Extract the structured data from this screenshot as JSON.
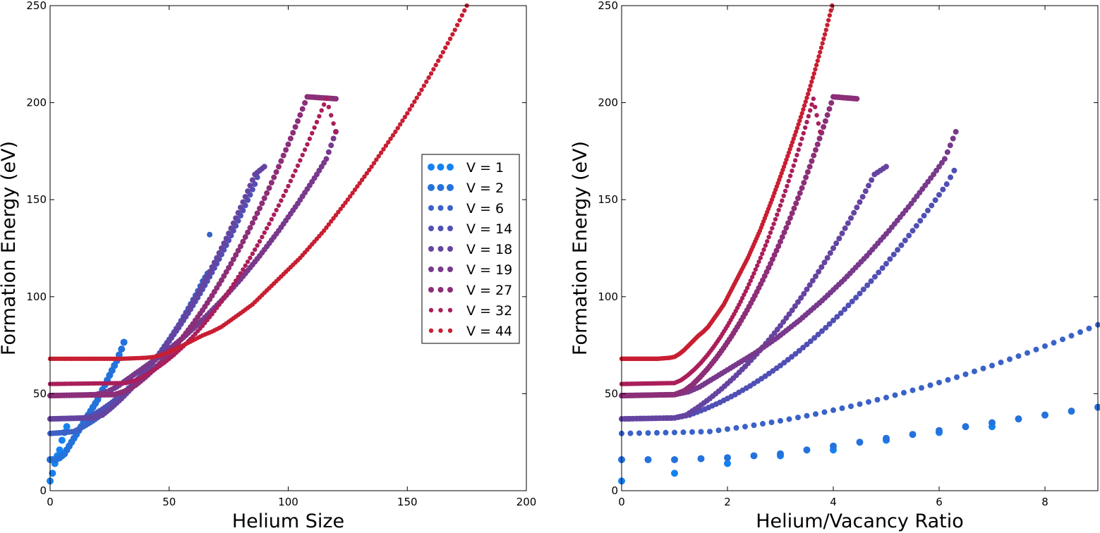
{
  "figure": {
    "panels": [
      {
        "xlabel": "Helium Size",
        "ylabel": "Formation Energy (eV)"
      },
      {
        "xlabel": "Helium/Vacancy Ratio",
        "ylabel": "Formation Energy (eV)"
      }
    ]
  },
  "chart_data": [
    {
      "type": "scatter",
      "xlabel": "Helium Size",
      "ylabel": "Formation Energy (eV)",
      "xlim": [
        0,
        200
      ],
      "ylim": [
        0,
        250
      ],
      "xticks": [
        "0",
        "50",
        "100",
        "150",
        "200"
      ],
      "yticks": [
        "0",
        "50",
        "100",
        "150",
        "200",
        "250"
      ],
      "grid": false,
      "legend": "center-right",
      "x_variable": "helium_size",
      "series": [
        {
          "name": "V = 1",
          "color": "#1482f0",
          "marker_size": "large",
          "points": [
            [
              0,
              5
            ],
            [
              1,
              9
            ],
            [
              2,
              14
            ],
            [
              3,
              18
            ],
            [
              4,
              21
            ],
            [
              5,
              26
            ],
            [
              6,
              30
            ],
            [
              7,
              33
            ]
          ]
        },
        {
          "name": "V = 2",
          "color": "#2472dc",
          "marker_size": "large",
          "points": [
            [
              0,
              16
            ],
            [
              1,
              16
            ],
            [
              2,
              16
            ],
            [
              3,
              16.5
            ],
            [
              4,
              17
            ],
            [
              5,
              18
            ],
            [
              6,
              19
            ],
            [
              7,
              21
            ],
            [
              8,
              23
            ],
            [
              9,
              25
            ],
            [
              10,
              27
            ],
            [
              11,
              29
            ],
            [
              12,
              31
            ],
            [
              13,
              33
            ],
            [
              14,
              35
            ],
            [
              15,
              37
            ],
            [
              16,
              39
            ],
            [
              17,
              41
            ],
            [
              18,
              43
            ],
            [
              19,
              45
            ],
            [
              20,
              47
            ],
            [
              21,
              49.5
            ],
            [
              22,
              52
            ],
            [
              23,
              54.5
            ],
            [
              24,
              57
            ],
            [
              25,
              59.5
            ],
            [
              26,
              62
            ],
            [
              27,
              64.5
            ],
            [
              28,
              67
            ],
            [
              29,
              70
            ],
            [
              30,
              73
            ],
            [
              31,
              76.5
            ]
          ]
        },
        {
          "name": "V = 6",
          "color": "#3a62c8",
          "marker_size": "medium",
          "points": [
            [
              0,
              29.5
            ],
            [
              6,
              30
            ],
            [
              10,
              30.5
            ],
            [
              14,
              33
            ],
            [
              18,
              36
            ],
            [
              22,
              39.5
            ],
            [
              26,
              43.5
            ],
            [
              30,
              48
            ],
            [
              34,
              53
            ],
            [
              38,
              58.5
            ],
            [
              42,
              64.5
            ],
            [
              46,
              71
            ],
            [
              50,
              78
            ],
            [
              54,
              85.5
            ],
            [
              58,
              94
            ],
            [
              62,
              103
            ],
            [
              64,
              108
            ],
            [
              66,
              112
            ],
            [
              67,
              132
            ]
          ]
        },
        {
          "name": "V = 14",
          "color": "#504fb4",
          "marker_size": "medium",
          "points": [
            [
              0,
              37
            ],
            [
              14,
              37.5
            ],
            [
              18,
              39
            ],
            [
              22,
              42
            ],
            [
              26,
              45.5
            ],
            [
              30,
              49.5
            ],
            [
              34,
              54
            ],
            [
              38,
              59
            ],
            [
              42,
              64.5
            ],
            [
              46,
              70.5
            ],
            [
              50,
              77
            ],
            [
              54,
              84
            ],
            [
              58,
              91.5
            ],
            [
              62,
              99.5
            ],
            [
              66,
              108
            ],
            [
              70,
              117
            ],
            [
              74,
              126.5
            ],
            [
              78,
              136.5
            ],
            [
              82,
              147
            ],
            [
              86,
              158
            ],
            [
              88,
              165
            ]
          ]
        },
        {
          "name": "V = 18",
          "color": "#6444a0",
          "marker_size": "medium",
          "points": [
            [
              0,
              37
            ],
            [
              18,
              37.5
            ],
            [
              22,
              39
            ],
            [
              26,
              43
            ],
            [
              30,
              47.5
            ],
            [
              34,
              52.5
            ],
            [
              38,
              58
            ],
            [
              42,
              64
            ],
            [
              46,
              70.5
            ],
            [
              50,
              77.5
            ],
            [
              54,
              85
            ],
            [
              58,
              93
            ],
            [
              62,
              101.5
            ],
            [
              66,
              110.5
            ],
            [
              70,
              120
            ],
            [
              74,
              130
            ],
            [
              78,
              140.5
            ],
            [
              82,
              151.5
            ],
            [
              86,
              163
            ],
            [
              90,
              167
            ]
          ]
        },
        {
          "name": "V = 19",
          "color": "#78398c",
          "marker_size": "medium",
          "points": [
            [
              0,
              49
            ],
            [
              19,
              49.5
            ],
            [
              24,
              51
            ],
            [
              28,
              53.5
            ],
            [
              32,
              57
            ],
            [
              36,
              60.5
            ],
            [
              40,
              64
            ],
            [
              44,
              67.5
            ],
            [
              48,
              71
            ],
            [
              52,
              75
            ],
            [
              56,
              79
            ],
            [
              60,
              83.5
            ],
            [
              64,
              88
            ],
            [
              68,
              93
            ],
            [
              72,
              98
            ],
            [
              76,
              103.5
            ],
            [
              80,
              109
            ],
            [
              84,
              115
            ],
            [
              88,
              121
            ],
            [
              92,
              127.5
            ],
            [
              96,
              134
            ],
            [
              100,
              141
            ],
            [
              104,
              148
            ],
            [
              108,
              155.5
            ],
            [
              112,
              163
            ],
            [
              116,
              171
            ],
            [
              120,
              185
            ]
          ]
        },
        {
          "name": "V = 27",
          "color": "#8c2e78",
          "marker_size": "medium",
          "points": [
            [
              0,
              49
            ],
            [
              27,
              49.5
            ],
            [
              32,
              51.5
            ],
            [
              36,
              54.5
            ],
            [
              40,
              58.5
            ],
            [
              44,
              63
            ],
            [
              48,
              68
            ],
            [
              52,
              73.5
            ],
            [
              56,
              79.5
            ],
            [
              60,
              86
            ],
            [
              64,
              93
            ],
            [
              68,
              100.5
            ],
            [
              72,
              108.5
            ],
            [
              76,
              117
            ],
            [
              80,
              126
            ],
            [
              84,
              135.5
            ],
            [
              88,
              145.5
            ],
            [
              92,
              156
            ],
            [
              96,
              167
            ],
            [
              100,
              178.5
            ],
            [
              104,
              190.5
            ],
            [
              108,
              203
            ],
            [
              120,
              202
            ]
          ]
        },
        {
          "name": "V = 32",
          "color": "#aa1e5a",
          "marker_size": "small",
          "points": [
            [
              0,
              55
            ],
            [
              32,
              55.5
            ],
            [
              36,
              57
            ],
            [
              40,
              59.5
            ],
            [
              44,
              62.5
            ],
            [
              48,
              66
            ],
            [
              52,
              70
            ],
            [
              56,
              74.5
            ],
            [
              60,
              79.5
            ],
            [
              64,
              85
            ],
            [
              68,
              91
            ],
            [
              72,
              97.5
            ],
            [
              76,
              104.5
            ],
            [
              80,
              112
            ],
            [
              84,
              120
            ],
            [
              88,
              128.5
            ],
            [
              92,
              137.5
            ],
            [
              96,
              147
            ],
            [
              100,
              157
            ],
            [
              104,
              167.5
            ],
            [
              108,
              178.5
            ],
            [
              112,
              190
            ],
            [
              116,
              202
            ],
            [
              120,
              185
            ]
          ]
        },
        {
          "name": "V = 44",
          "color": "#c81e32",
          "marker_size": "small",
          "points": [
            [
              0,
              68
            ],
            [
              20,
              68
            ],
            [
              30,
              68
            ],
            [
              40,
              68.5
            ],
            [
              44,
              69
            ],
            [
              48,
              70.5
            ],
            [
              52,
              72.5
            ],
            [
              56,
              75
            ],
            [
              60,
              77.5
            ],
            [
              64,
              80
            ],
            [
              68,
              82
            ],
            [
              72,
              84.5
            ],
            [
              76,
              88
            ],
            [
              80,
              91.5
            ],
            [
              85,
              96
            ],
            [
              90,
              102
            ],
            [
              95,
              108
            ],
            [
              100,
              114
            ],
            [
              105,
              120
            ],
            [
              110,
              127
            ],
            [
              115,
              134
            ],
            [
              120,
              142
            ],
            [
              125,
              150
            ],
            [
              130,
              158.5
            ],
            [
              135,
              167
            ],
            [
              140,
              176
            ],
            [
              145,
              185
            ],
            [
              150,
              194.5
            ],
            [
              155,
              204.5
            ],
            [
              160,
              215
            ],
            [
              165,
              226
            ],
            [
              170,
              237.5
            ],
            [
              175,
              250
            ]
          ]
        }
      ]
    },
    {
      "type": "scatter",
      "xlabel": "Helium/Vacancy Ratio",
      "ylabel": "Formation Energy (eV)",
      "xlim": [
        0,
        9
      ],
      "ylim": [
        0,
        250
      ],
      "xticks": [
        "0",
        "2",
        "4",
        "6",
        "8"
      ],
      "yticks": [
        "0",
        "50",
        "100",
        "150",
        "200",
        "250"
      ],
      "grid": false,
      "x_variable": "helium_size / V"
    }
  ]
}
